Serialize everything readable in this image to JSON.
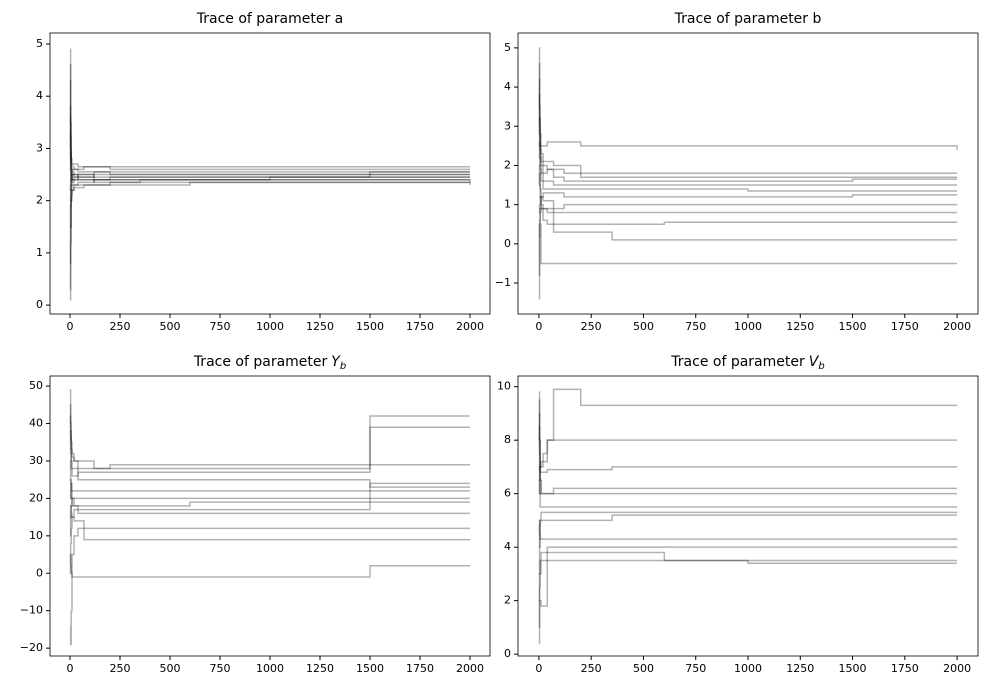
{
  "chart_data": [
    {
      "type": "line",
      "title": "Trace of parameter a",
      "drawstyle": "steps",
      "color": "#000000",
      "alpha": 0.3,
      "x": [
        0,
        3,
        6,
        10,
        20,
        40,
        70,
        120,
        200,
        350,
        600,
        1000,
        1500,
        2000
      ],
      "xlim": [
        -100,
        2100
      ],
      "xticks": [
        0,
        250,
        500,
        750,
        1000,
        1250,
        1500,
        1750,
        2000
      ],
      "ylim": [
        -0.17,
        5.21
      ],
      "yticks": [
        0,
        1,
        2,
        3,
        4,
        5
      ],
      "series": [
        {
          "values": [
            4.9,
            3.5,
            2.6,
            2.4,
            2.45,
            2.5,
            2.5,
            2.55,
            2.5,
            2.5,
            2.5,
            2.5,
            2.5,
            2.5
          ]
        },
        {
          "values": [
            0.1,
            1.2,
            2.0,
            2.2,
            2.3,
            2.35,
            2.35,
            2.4,
            2.4,
            2.4,
            2.4,
            2.4,
            2.4,
            2.35
          ]
        },
        {
          "values": [
            3.8,
            2.9,
            2.7,
            2.65,
            2.6,
            2.6,
            2.65,
            2.65,
            2.6,
            2.6,
            2.6,
            2.6,
            2.6,
            2.6
          ]
        },
        {
          "values": [
            1.5,
            2.0,
            2.2,
            2.3,
            2.3,
            2.3,
            2.3,
            2.3,
            2.35,
            2.35,
            2.35,
            2.35,
            2.35,
            2.3
          ]
        },
        {
          "values": [
            4.3,
            3.0,
            2.5,
            2.5,
            2.45,
            2.45,
            2.45,
            2.45,
            2.45,
            2.45,
            2.45,
            2.45,
            2.45,
            2.45
          ]
        },
        {
          "values": [
            0.8,
            1.9,
            2.4,
            2.6,
            2.6,
            2.55,
            2.55,
            2.55,
            2.55,
            2.55,
            2.55,
            2.55,
            2.55,
            2.55
          ]
        },
        {
          "values": [
            2.9,
            2.6,
            2.4,
            2.35,
            2.4,
            2.4,
            2.4,
            2.4,
            2.45,
            2.45,
            2.45,
            2.45,
            2.5,
            2.5
          ]
        },
        {
          "values": [
            3.3,
            2.2,
            2.3,
            2.5,
            2.5,
            2.5,
            2.5,
            2.4,
            2.4,
            2.4,
            2.4,
            2.45,
            2.45,
            2.45
          ]
        },
        {
          "values": [
            0.3,
            1.5,
            2.1,
            2.2,
            2.25,
            2.25,
            2.3,
            2.3,
            2.3,
            2.3,
            2.35,
            2.35,
            2.35,
            2.35
          ]
        },
        {
          "values": [
            4.6,
            3.2,
            2.8,
            2.7,
            2.7,
            2.65,
            2.65,
            2.65,
            2.65,
            2.65,
            2.65,
            2.65,
            2.65,
            2.65
          ]
        },
        {
          "values": [
            2.0,
            2.3,
            2.5,
            2.4,
            2.4,
            2.45,
            2.45,
            2.5,
            2.5,
            2.5,
            2.5,
            2.5,
            2.55,
            2.55
          ]
        },
        {
          "values": [
            3.6,
            2.8,
            2.6,
            2.55,
            2.5,
            2.4,
            2.4,
            2.35,
            2.35,
            2.4,
            2.4,
            2.4,
            2.4,
            2.4
          ]
        }
      ]
    },
    {
      "type": "line",
      "title": "Trace of parameter b",
      "drawstyle": "steps",
      "color": "#000000",
      "alpha": 0.3,
      "x": [
        0,
        3,
        6,
        10,
        20,
        40,
        70,
        120,
        200,
        350,
        600,
        1000,
        1500,
        2000
      ],
      "xlim": [
        -100,
        2100
      ],
      "xticks": [
        0,
        250,
        500,
        750,
        1000,
        1250,
        1500,
        1750,
        2000
      ],
      "ylim": [
        -1.79,
        5.38
      ],
      "yticks": [
        {
          "value": -1,
          "label": "−1"
        },
        0,
        1,
        2,
        3,
        4,
        5
      ],
      "series": [
        {
          "values": [
            5.0,
            3.5,
            2.8,
            2.5,
            2.5,
            2.6,
            2.6,
            2.6,
            2.5,
            2.5,
            2.5,
            2.5,
            2.5,
            2.4
          ]
        },
        {
          "values": [
            -1.4,
            0.2,
            0.5,
            -0.5,
            -0.5,
            -0.5,
            -0.5,
            -0.5,
            -0.5,
            -0.5,
            -0.5,
            -0.5,
            -0.5,
            -0.5
          ]
        },
        {
          "values": [
            3.2,
            2.5,
            2.0,
            1.8,
            1.8,
            1.9,
            1.9,
            1.8,
            1.8,
            1.8,
            1.8,
            1.8,
            1.8,
            1.8
          ]
        },
        {
          "values": [
            0.8,
            1.0,
            1.2,
            1.0,
            0.9,
            0.9,
            0.9,
            1.0,
            1.0,
            1.0,
            1.0,
            1.0,
            1.0,
            1.0
          ]
        },
        {
          "values": [
            4.2,
            3.0,
            2.2,
            2.0,
            1.6,
            1.6,
            1.5,
            1.5,
            1.5,
            1.5,
            1.5,
            1.5,
            1.5,
            1.5
          ]
        },
        {
          "values": [
            2.0,
            1.5,
            1.2,
            0.9,
            0.6,
            0.5,
            0.5,
            0.5,
            0.5,
            0.5,
            0.55,
            0.55,
            0.55,
            0.55
          ]
        },
        {
          "values": [
            -0.8,
            0.5,
            0.8,
            1.2,
            1.3,
            1.3,
            1.3,
            1.2,
            1.2,
            1.2,
            1.2,
            1.2,
            1.25,
            1.25
          ]
        },
        {
          "values": [
            3.8,
            2.8,
            2.5,
            2.3,
            2.1,
            2.1,
            2.0,
            2.0,
            1.7,
            1.7,
            1.7,
            1.7,
            1.7,
            1.7
          ]
        },
        {
          "values": [
            1.5,
            1.8,
            1.4,
            1.2,
            1.1,
            1.1,
            0.3,
            0.3,
            0.3,
            0.1,
            0.1,
            0.1,
            0.1,
            0.1
          ]
        },
        {
          "values": [
            2.6,
            2.2,
            1.9,
            1.6,
            1.4,
            1.4,
            1.4,
            1.4,
            1.4,
            1.4,
            1.4,
            1.35,
            1.35,
            1.35
          ]
        },
        {
          "values": [
            4.6,
            3.2,
            2.4,
            2.1,
            2.0,
            1.9,
            1.7,
            1.6,
            1.6,
            1.6,
            1.6,
            1.6,
            1.65,
            1.65
          ]
        },
        {
          "values": [
            0.2,
            0.6,
            0.9,
            0.9,
            0.9,
            0.8,
            0.8,
            0.8,
            0.8,
            0.8,
            0.8,
            0.8,
            0.8,
            0.8
          ]
        }
      ]
    },
    {
      "type": "line",
      "title": "Trace of parameter",
      "title_symbol": "Y",
      "title_subscript": "b",
      "drawstyle": "steps",
      "color": "#000000",
      "alpha": 0.3,
      "x": [
        0,
        3,
        6,
        10,
        20,
        40,
        70,
        120,
        200,
        350,
        600,
        1000,
        1500,
        2000
      ],
      "xlim": [
        -100,
        2100
      ],
      "xticks": [
        0,
        250,
        500,
        750,
        1000,
        1250,
        1500,
        1750,
        2000
      ],
      "ylim": [
        -22.1,
        52.7
      ],
      "yticks": [
        {
          "value": -20,
          "label": "−20"
        },
        {
          "value": -10,
          "label": "−10"
        },
        0,
        10,
        20,
        30,
        40,
        50
      ],
      "series": [
        {
          "values": [
            49,
            40,
            35,
            32,
            30,
            28,
            28,
            28,
            29,
            29,
            29,
            29,
            29,
            29
          ]
        },
        {
          "values": [
            -14,
            -19,
            -10,
            5,
            10,
            12,
            12,
            12,
            12,
            12,
            12,
            12,
            12,
            12
          ]
        },
        {
          "values": [
            45,
            38,
            30,
            28,
            28,
            25,
            25,
            25,
            25,
            25,
            25,
            25,
            23,
            23
          ]
        },
        {
          "values": [
            10,
            15,
            18,
            20,
            20,
            20,
            20,
            20,
            20,
            20,
            20,
            20,
            20,
            20
          ]
        },
        {
          "values": [
            30,
            25,
            22,
            20,
            18,
            16,
            16,
            16,
            16,
            16,
            16,
            16,
            16,
            16
          ]
        },
        {
          "values": [
            5,
            2,
            0,
            -1,
            -1,
            -1,
            -1,
            -1,
            -1,
            -1,
            -1,
            -1,
            2,
            2
          ]
        },
        {
          "values": [
            38,
            32,
            28,
            26,
            26,
            27,
            27,
            27,
            27,
            27,
            27,
            27,
            42,
            42
          ]
        },
        {
          "values": [
            20,
            22,
            24,
            22,
            22,
            22,
            22,
            22,
            22,
            22,
            22,
            22,
            22,
            22
          ]
        },
        {
          "values": [
            15,
            18,
            16,
            15,
            14,
            14,
            9,
            9,
            9,
            9,
            9,
            9,
            9,
            9
          ]
        },
        {
          "values": [
            42,
            36,
            33,
            31,
            30,
            30,
            30,
            28,
            28,
            28,
            28,
            28,
            39,
            39
          ]
        },
        {
          "values": [
            25,
            24,
            20,
            18,
            18,
            18,
            18,
            18,
            18,
            18,
            19,
            19,
            19,
            19
          ]
        },
        {
          "values": [
            0,
            8,
            12,
            15,
            17,
            17,
            17,
            17,
            17,
            17,
            17,
            17,
            24,
            24
          ]
        }
      ]
    },
    {
      "type": "line",
      "title": "Trace of parameter",
      "title_symbol": "V",
      "title_subscript": "b",
      "drawstyle": "steps",
      "color": "#000000",
      "alpha": 0.3,
      "x": [
        0,
        3,
        6,
        10,
        20,
        40,
        70,
        120,
        200,
        350,
        600,
        1000,
        1500,
        2000
      ],
      "xlim": [
        -100,
        2100
      ],
      "xticks": [
        0,
        250,
        500,
        750,
        1000,
        1250,
        1500,
        1750,
        2000
      ],
      "ylim": [
        -0.07,
        10.4
      ],
      "yticks": [
        0,
        2,
        4,
        6,
        8,
        10
      ],
      "series": [
        {
          "values": [
            9.8,
            8,
            7,
            7,
            7.5,
            8,
            9.9,
            9.9,
            9.3,
            9.3,
            9.3,
            9.3,
            9.3,
            9.3
          ]
        },
        {
          "values": [
            0.4,
            2,
            2,
            1.8,
            1.8,
            4,
            4,
            4,
            4,
            4,
            4,
            4,
            4,
            4
          ]
        },
        {
          "values": [
            9,
            7.5,
            6.5,
            6,
            6,
            6,
            6,
            6,
            6,
            6,
            6,
            6,
            6,
            6
          ]
        },
        {
          "values": [
            3,
            4,
            5,
            5,
            5,
            5,
            5,
            5,
            5,
            5.2,
            5.2,
            5.2,
            5.2,
            5.2
          ]
        },
        {
          "values": [
            7,
            6,
            5.5,
            5.5,
            5.5,
            5.5,
            5.5,
            5.5,
            5.5,
            5.5,
            5.5,
            5.5,
            5.5,
            5.5
          ]
        },
        {
          "values": [
            2,
            3,
            3.5,
            3.8,
            3.8,
            3.8,
            3.8,
            3.8,
            3.8,
            3.8,
            3.5,
            3.5,
            3.5,
            3.5
          ]
        },
        {
          "values": [
            8.5,
            7,
            6.8,
            6.8,
            6.8,
            6.9,
            6.9,
            6.9,
            6.9,
            7.0,
            7.0,
            7.0,
            7.0,
            7.0
          ]
        },
        {
          "values": [
            5,
            4.5,
            4.3,
            4.3,
            4.3,
            4.3,
            4.3,
            4.3,
            4.3,
            4.3,
            4.3,
            4.3,
            4.3,
            4.3
          ]
        },
        {
          "values": [
            6,
            6.5,
            7,
            7.2,
            7.2,
            8,
            8,
            8,
            8,
            8,
            8,
            8,
            8,
            8
          ]
        },
        {
          "values": [
            1,
            2.5,
            3,
            3.5,
            3.5,
            3.5,
            3.5,
            3.5,
            3.5,
            3.5,
            3.5,
            3.4,
            3.4,
            3.4
          ]
        },
        {
          "values": [
            9.5,
            8,
            6.5,
            6,
            6,
            6,
            6.2,
            6.2,
            6.2,
            6.2,
            6.2,
            6.2,
            6.2,
            6.2
          ]
        },
        {
          "values": [
            4,
            4.8,
            5,
            5.3,
            5.3,
            5.3,
            5.3,
            5.3,
            5.3,
            5.3,
            5.3,
            5.3,
            5.3,
            5.3
          ]
        }
      ]
    }
  ]
}
